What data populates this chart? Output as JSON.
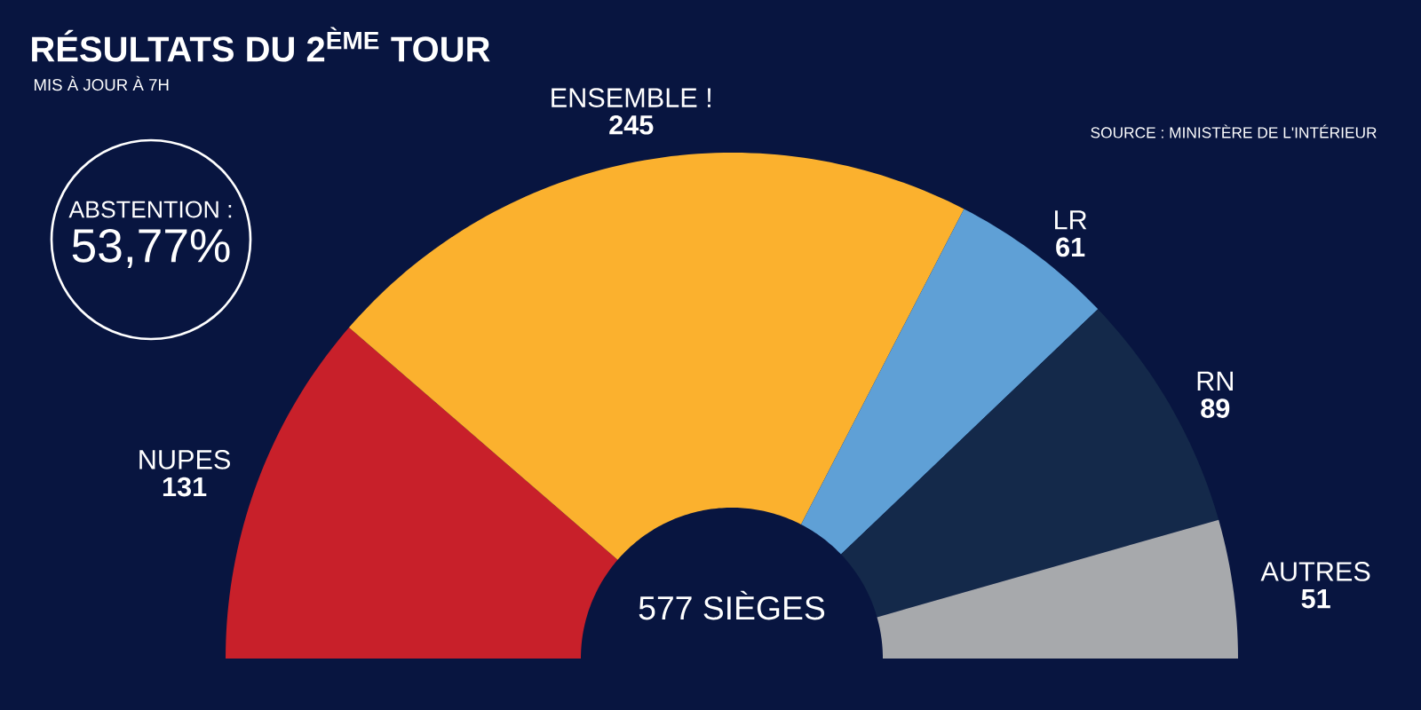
{
  "chart_data": {
    "type": "donut",
    "title": "RÉSULTATS DU 2$^{ÈME}$ TOUR",
    "subtitle": "MIS À JOUR À 7H",
    "categories": [
      "NUPES",
      "ENSEMBLE !",
      "LR",
      "RN",
      "AUTRES"
    ],
    "values": [
      131,
      245,
      61,
      89,
      51
    ],
    "colors": [
      "#c8202a",
      "#fbb12e",
      "#5fa0d6",
      "#14294a",
      "#a7a9ac"
    ],
    "data_labels": true,
    "annotations": [
      "ABSTENTION :",
      "53,77%",
      "577 SIÈGES",
      "SOURCE : MINISTÈRE DE L'INTÉRIEUR"
    ]
  }
}
